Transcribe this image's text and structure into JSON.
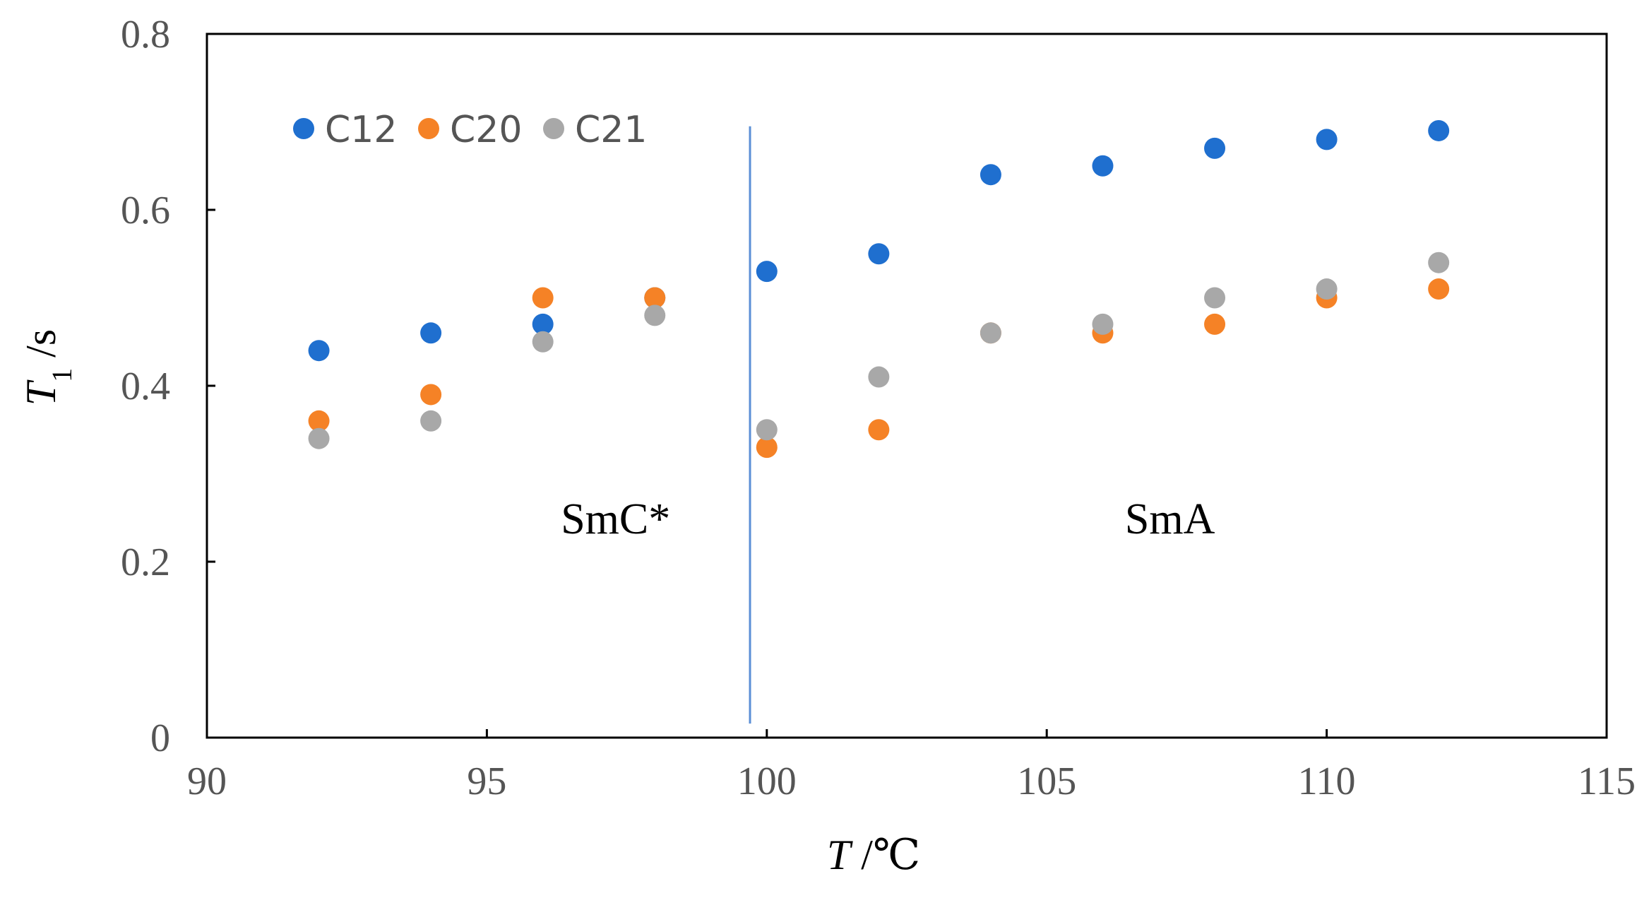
{
  "chart_data": {
    "type": "scatter",
    "xlabel_main": "T",
    "xlabel_unit": " /℃",
    "ylabel_main": "T",
    "ylabel_sub": "1",
    "ylabel_unit": " /s",
    "xlim": [
      90,
      115
    ],
    "ylim": [
      0,
      0.8
    ],
    "xticks": [
      90,
      95,
      100,
      105,
      110,
      115
    ],
    "yticks": [
      0,
      0.2,
      0.4,
      0.6,
      0.8
    ],
    "xtick_labels": [
      "90",
      "95",
      "100",
      "105",
      "110",
      "115"
    ],
    "ytick_labels": [
      "0",
      "0.2",
      "0.4",
      "0.6",
      "0.8"
    ],
    "legend_position": "top-left",
    "series": [
      {
        "name": "C12",
        "color": "#1f6fcf",
        "x": [
          92,
          94,
          96,
          98,
          100,
          102,
          104,
          106,
          108,
          110,
          112
        ],
        "y": [
          0.44,
          0.46,
          0.47,
          0.5,
          0.53,
          0.55,
          0.64,
          0.65,
          0.67,
          0.68,
          0.69
        ]
      },
      {
        "name": "C20",
        "color": "#f58226",
        "x": [
          92,
          94,
          96,
          98,
          100,
          102,
          104,
          106,
          108,
          110,
          112
        ],
        "y": [
          0.36,
          0.39,
          0.5,
          0.5,
          0.33,
          0.35,
          0.46,
          0.46,
          0.47,
          0.5,
          0.51
        ]
      },
      {
        "name": "C21",
        "color": "#a8a8a8",
        "x": [
          92,
          94,
          96,
          98,
          100,
          102,
          104,
          106,
          108,
          110,
          112
        ],
        "y": [
          0.34,
          0.36,
          0.45,
          0.48,
          0.35,
          0.41,
          0.46,
          0.47,
          0.5,
          0.51,
          0.54
        ]
      }
    ],
    "phase_boundary": {
      "x": 99.7,
      "y_from": 0.016,
      "y_to": 0.695,
      "color": "#5b8fd6"
    },
    "annotations": [
      {
        "text": "SmC*",
        "x": 97.3,
        "y": 0.25
      },
      {
        "text": "SmA",
        "x": 107.2,
        "y": 0.25
      }
    ]
  }
}
